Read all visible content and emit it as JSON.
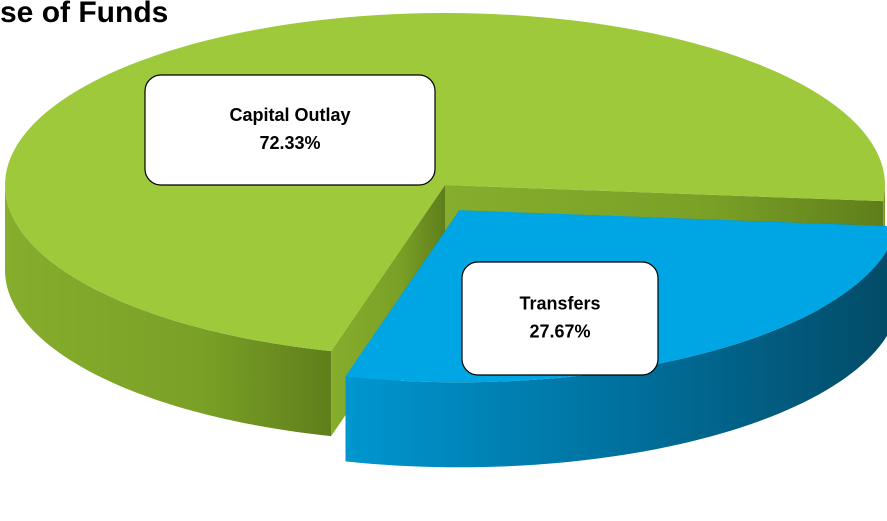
{
  "chart_data": {
    "type": "pie",
    "title": "se of Funds",
    "categories": [
      "Capital Outlay",
      "Transfers"
    ],
    "values": [
      72.33,
      27.67
    ],
    "value_labels": [
      "72.33%",
      "27.67%"
    ],
    "colors": [
      "#9dc93b",
      "#00a6e3"
    ]
  }
}
